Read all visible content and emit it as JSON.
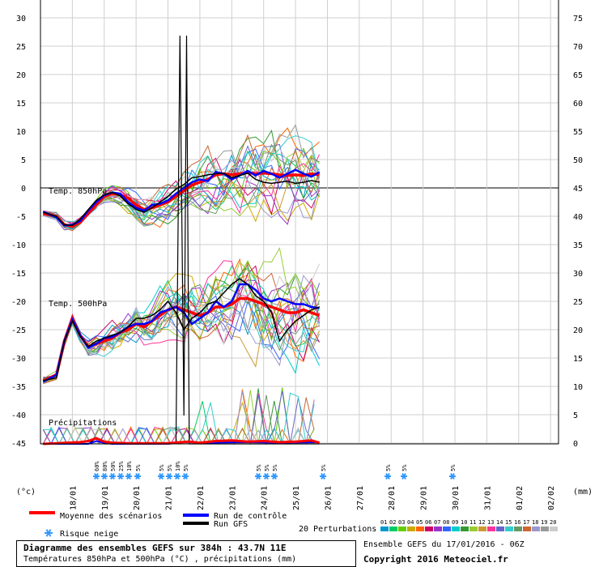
{
  "chart_data": {
    "type": "line",
    "left_axis_label": "(°c)",
    "right_axis_label": "(mm)",
    "y_left_ticks": [
      30,
      25,
      20,
      15,
      10,
      5,
      0,
      -5,
      -10,
      -15,
      -20,
      -25,
      -30,
      -35,
      -40,
      -45
    ],
    "y_right_ticks": [
      75,
      70,
      65,
      60,
      55,
      50,
      45,
      40,
      35,
      30,
      25,
      20,
      15,
      10,
      5,
      0
    ],
    "x_dates": [
      "18/01",
      "19/01",
      "20/01",
      "21/01",
      "22/01",
      "23/01",
      "24/01",
      "25/01",
      "26/01",
      "27/01",
      "28/01",
      "29/01",
      "30/01",
      "31/01",
      "01/02",
      "02/02"
    ],
    "panel_labels": {
      "t850": "Temp. 850hPa",
      "t500": "Temp. 500hPa",
      "precip": "Précipitations"
    },
    "series": [
      {
        "name": "Moyenne des scénarios",
        "color": "#ff0000"
      },
      {
        "name": "Run de contrôle",
        "color": "#0000ff"
      },
      {
        "name": "Run GFS",
        "color": "#000000"
      }
    ],
    "snow_labels": [
      "60%",
      "80%",
      "50%",
      "25%",
      "10%",
      "5%",
      "5%",
      "5%",
      "10%",
      "5%",
      "5%",
      "5%",
      "5%",
      "5%",
      "5%",
      "5%",
      "5%"
    ],
    "mean_850": [
      [
        -4,
        -4.5
      ],
      [
        6,
        -5
      ],
      [
        12,
        -6.5
      ],
      [
        18,
        -6.8
      ],
      [
        24,
        -6
      ],
      [
        30,
        -4.5
      ],
      [
        36,
        -3
      ],
      [
        42,
        -1.5
      ],
      [
        48,
        -1
      ],
      [
        54,
        -1.2
      ],
      [
        60,
        -1.8
      ],
      [
        66,
        -3
      ],
      [
        72,
        -3.8
      ],
      [
        78,
        -3.5
      ],
      [
        84,
        -3
      ],
      [
        90,
        -2.5
      ],
      [
        96,
        -1.5
      ],
      [
        102,
        -0.5
      ],
      [
        108,
        0.5
      ],
      [
        114,
        1
      ],
      [
        120,
        1.5
      ],
      [
        126,
        2.3
      ],
      [
        132,
        2.5
      ],
      [
        138,
        2.3
      ],
      [
        144,
        2.5
      ],
      [
        150,
        2.7
      ],
      [
        156,
        2.5
      ],
      [
        162,
        2.6
      ],
      [
        168,
        2.5
      ],
      [
        174,
        2.3
      ],
      [
        180,
        2.2
      ],
      [
        186,
        2.3
      ],
      [
        192,
        2.2
      ],
      [
        198,
        2.5
      ],
      [
        204,
        2.3
      ]
    ],
    "ctrl_850": [
      [
        -4,
        -4.2
      ],
      [
        6,
        -5.2
      ],
      [
        12,
        -6.6
      ],
      [
        18,
        -6.5
      ],
      [
        24,
        -5.8
      ],
      [
        30,
        -4
      ],
      [
        36,
        -2.5
      ],
      [
        42,
        -1.3
      ],
      [
        48,
        -0.8
      ],
      [
        54,
        -1
      ],
      [
        60,
        -2.5
      ],
      [
        66,
        -3.5
      ],
      [
        72,
        -4
      ],
      [
        78,
        -3
      ],
      [
        84,
        -2.8
      ],
      [
        90,
        -2.2
      ],
      [
        96,
        -1
      ],
      [
        102,
        0
      ],
      [
        108,
        1
      ],
      [
        114,
        1.5
      ],
      [
        120,
        1.2
      ],
      [
        126,
        2.8
      ],
      [
        132,
        2.5
      ],
      [
        138,
        1.5
      ],
      [
        144,
        2.2
      ],
      [
        150,
        3
      ],
      [
        156,
        2.2
      ],
      [
        162,
        3
      ],
      [
        168,
        2.5
      ],
      [
        174,
        1.8
      ],
      [
        180,
        2.5
      ],
      [
        186,
        3.2
      ],
      [
        192,
        2.5
      ],
      [
        198,
        2
      ],
      [
        204,
        2.8
      ]
    ],
    "gfs_850": [
      [
        -4,
        -4.3
      ],
      [
        6,
        -5
      ],
      [
        12,
        -6.5
      ],
      [
        18,
        -6.6
      ],
      [
        24,
        -5.5
      ],
      [
        30,
        -3.8
      ],
      [
        36,
        -2.2
      ],
      [
        42,
        -1.2
      ],
      [
        48,
        -0.8
      ],
      [
        54,
        -1.4
      ],
      [
        60,
        -2.8
      ],
      [
        66,
        -3.8
      ],
      [
        72,
        -4.3
      ],
      [
        78,
        -3.5
      ],
      [
        84,
        -2.5
      ],
      [
        90,
        -1.5
      ],
      [
        96,
        -0.2
      ],
      [
        102,
        0.6
      ],
      [
        108,
        1.8
      ],
      [
        114,
        2
      ],
      [
        120,
        2.3
      ],
      [
        126,
        2.5
      ],
      [
        132,
        2.6
      ],
      [
        138,
        1.8
      ],
      [
        144,
        2.2
      ],
      [
        150,
        2.6
      ],
      [
        156,
        1.5
      ],
      [
        162,
        1
      ],
      [
        168,
        0.8
      ],
      [
        174,
        1
      ],
      [
        180,
        1.2
      ],
      [
        186,
        0.8
      ],
      [
        192,
        1
      ],
      [
        198,
        1.3
      ],
      [
        204,
        1
      ]
    ],
    "mean_500": [
      [
        -4,
        -34
      ],
      [
        6,
        -33
      ],
      [
        12,
        -27
      ],
      [
        18,
        -23
      ],
      [
        24,
        -26
      ],
      [
        30,
        -28
      ],
      [
        36,
        -27.5
      ],
      [
        42,
        -27
      ],
      [
        48,
        -26.5
      ],
      [
        54,
        -25.5
      ],
      [
        60,
        -25
      ],
      [
        66,
        -24
      ],
      [
        72,
        -24.5
      ],
      [
        78,
        -23.5
      ],
      [
        84,
        -22.5
      ],
      [
        90,
        -21.5
      ],
      [
        96,
        -21
      ],
      [
        102,
        -21.5
      ],
      [
        108,
        -22
      ],
      [
        114,
        -22.5
      ],
      [
        120,
        -22
      ],
      [
        126,
        -21
      ],
      [
        132,
        -21
      ],
      [
        138,
        -20.5
      ],
      [
        144,
        -19.5
      ],
      [
        150,
        -19.5
      ],
      [
        156,
        -20
      ],
      [
        162,
        -20.5
      ],
      [
        168,
        -21
      ],
      [
        174,
        -21.5
      ],
      [
        180,
        -22
      ],
      [
        186,
        -22
      ],
      [
        192,
        -21.5
      ],
      [
        198,
        -22
      ],
      [
        204,
        -22.5
      ]
    ],
    "ctrl_500": [
      [
        -4,
        -34.2
      ],
      [
        6,
        -33
      ],
      [
        12,
        -27
      ],
      [
        18,
        -23.2
      ],
      [
        24,
        -26
      ],
      [
        30,
        -28.2
      ],
      [
        36,
        -27.5
      ],
      [
        42,
        -26.5
      ],
      [
        48,
        -26.3
      ],
      [
        54,
        -25.5
      ],
      [
        60,
        -24.5
      ],
      [
        66,
        -24
      ],
      [
        72,
        -24
      ],
      [
        78,
        -23.5
      ],
      [
        84,
        -22
      ],
      [
        90,
        -21.5
      ],
      [
        96,
        -21
      ],
      [
        102,
        -22
      ],
      [
        108,
        -24
      ],
      [
        114,
        -23
      ],
      [
        120,
        -22
      ],
      [
        126,
        -20
      ],
      [
        132,
        -21
      ],
      [
        138,
        -20
      ],
      [
        144,
        -17
      ],
      [
        150,
        -17
      ],
      [
        156,
        -18
      ],
      [
        162,
        -19.5
      ],
      [
        168,
        -20
      ],
      [
        174,
        -19.5
      ],
      [
        180,
        -20
      ],
      [
        186,
        -20.5
      ],
      [
        192,
        -20.5
      ],
      [
        198,
        -21
      ],
      [
        204,
        -21.2
      ]
    ],
    "gfs_500": [
      [
        -4,
        -34
      ],
      [
        6,
        -33.5
      ],
      [
        12,
        -27
      ],
      [
        18,
        -23.5
      ],
      [
        24,
        -26.2
      ],
      [
        30,
        -28
      ],
      [
        36,
        -27
      ],
      [
        42,
        -26.5
      ],
      [
        48,
        -26
      ],
      [
        54,
        -25.5
      ],
      [
        60,
        -24.5
      ],
      [
        66,
        -23
      ],
      [
        72,
        -23
      ],
      [
        78,
        -22.5
      ],
      [
        84,
        -21.5
      ],
      [
        90,
        -20
      ],
      [
        96,
        -22
      ],
      [
        102,
        -25
      ],
      [
        108,
        -23
      ],
      [
        114,
        -22
      ],
      [
        120,
        -20.5
      ],
      [
        126,
        -20
      ],
      [
        132,
        -18.5
      ],
      [
        138,
        -17
      ],
      [
        144,
        -16
      ],
      [
        150,
        -17
      ],
      [
        156,
        -19
      ],
      [
        162,
        -20
      ],
      [
        168,
        -22
      ],
      [
        174,
        -27
      ],
      [
        180,
        -25
      ],
      [
        186,
        -23.5
      ],
      [
        192,
        -22.5
      ],
      [
        198,
        -21.5
      ],
      [
        204,
        -21
      ]
    ],
    "precip_gfs": [
      [
        -4,
        0
      ],
      [
        30,
        0
      ],
      [
        36,
        1
      ],
      [
        42,
        0
      ],
      [
        48,
        0
      ],
      [
        54,
        0
      ],
      [
        84,
        0
      ],
      [
        90,
        0
      ],
      [
        96,
        0.3
      ],
      [
        99,
        72
      ],
      [
        102,
        5
      ],
      [
        104,
        72
      ],
      [
        106,
        0
      ],
      [
        114,
        0
      ],
      [
        204,
        0
      ]
    ],
    "precip_mean": [
      [
        -4,
        0
      ],
      [
        24,
        0.3
      ],
      [
        30,
        0.5
      ],
      [
        36,
        1
      ],
      [
        42,
        0.4
      ],
      [
        48,
        0.2
      ],
      [
        60,
        0.1
      ],
      [
        90,
        0.1
      ],
      [
        100,
        0.3
      ],
      [
        106,
        0.4
      ],
      [
        114,
        0.2
      ],
      [
        126,
        0.5
      ],
      [
        138,
        0.6
      ],
      [
        150,
        0.4
      ],
      [
        162,
        0.5
      ],
      [
        174,
        0.3
      ],
      [
        186,
        0.4
      ],
      [
        198,
        0.6
      ],
      [
        204,
        0.2
      ]
    ],
    "precip_ctrl": [
      [
        -4,
        0
      ],
      [
        30,
        0
      ],
      [
        36,
        0.5
      ],
      [
        42,
        0.2
      ],
      [
        48,
        0
      ],
      [
        90,
        0
      ],
      [
        102,
        0.3
      ],
      [
        120,
        0.2
      ],
      [
        150,
        0.3
      ],
      [
        174,
        0.2
      ],
      [
        204,
        0.3
      ]
    ]
  },
  "legend": {
    "mean": "Moyenne des scénarios",
    "control": "Run de contrôle",
    "gfs": "Run GFS",
    "snow": "Risque neige",
    "perturbations": "20 Perturbations",
    "pert_numbers": [
      "01",
      "02",
      "03",
      "04",
      "05",
      "06",
      "07",
      "08",
      "09",
      "10",
      "11",
      "12",
      "13",
      "14",
      "15",
      "16",
      "17",
      "18",
      "19",
      "20"
    ],
    "pert_colors": [
      "#0099cc",
      "#00cc66",
      "#66cc00",
      "#ccaa00",
      "#ff6600",
      "#cc0066",
      "#9933cc",
      "#3366ff",
      "#00cccc",
      "#339933",
      "#99cc33",
      "#cc9933",
      "#ff3399",
      "#6666cc",
      "#33cccc",
      "#669966",
      "#cc6633",
      "#9999cc",
      "#999999",
      "#cccccc"
    ]
  },
  "footer": {
    "title": "Diagramme des ensembles GEFS sur 384h : 43.7N 11E",
    "subtitle": "Températures 850hPa et 500hPa (°C) , précipitations (mm)",
    "run": "Ensemble GEFS du 17/01/2016 - 06Z",
    "copyright": "Copyright 2016 Meteociel.fr"
  }
}
